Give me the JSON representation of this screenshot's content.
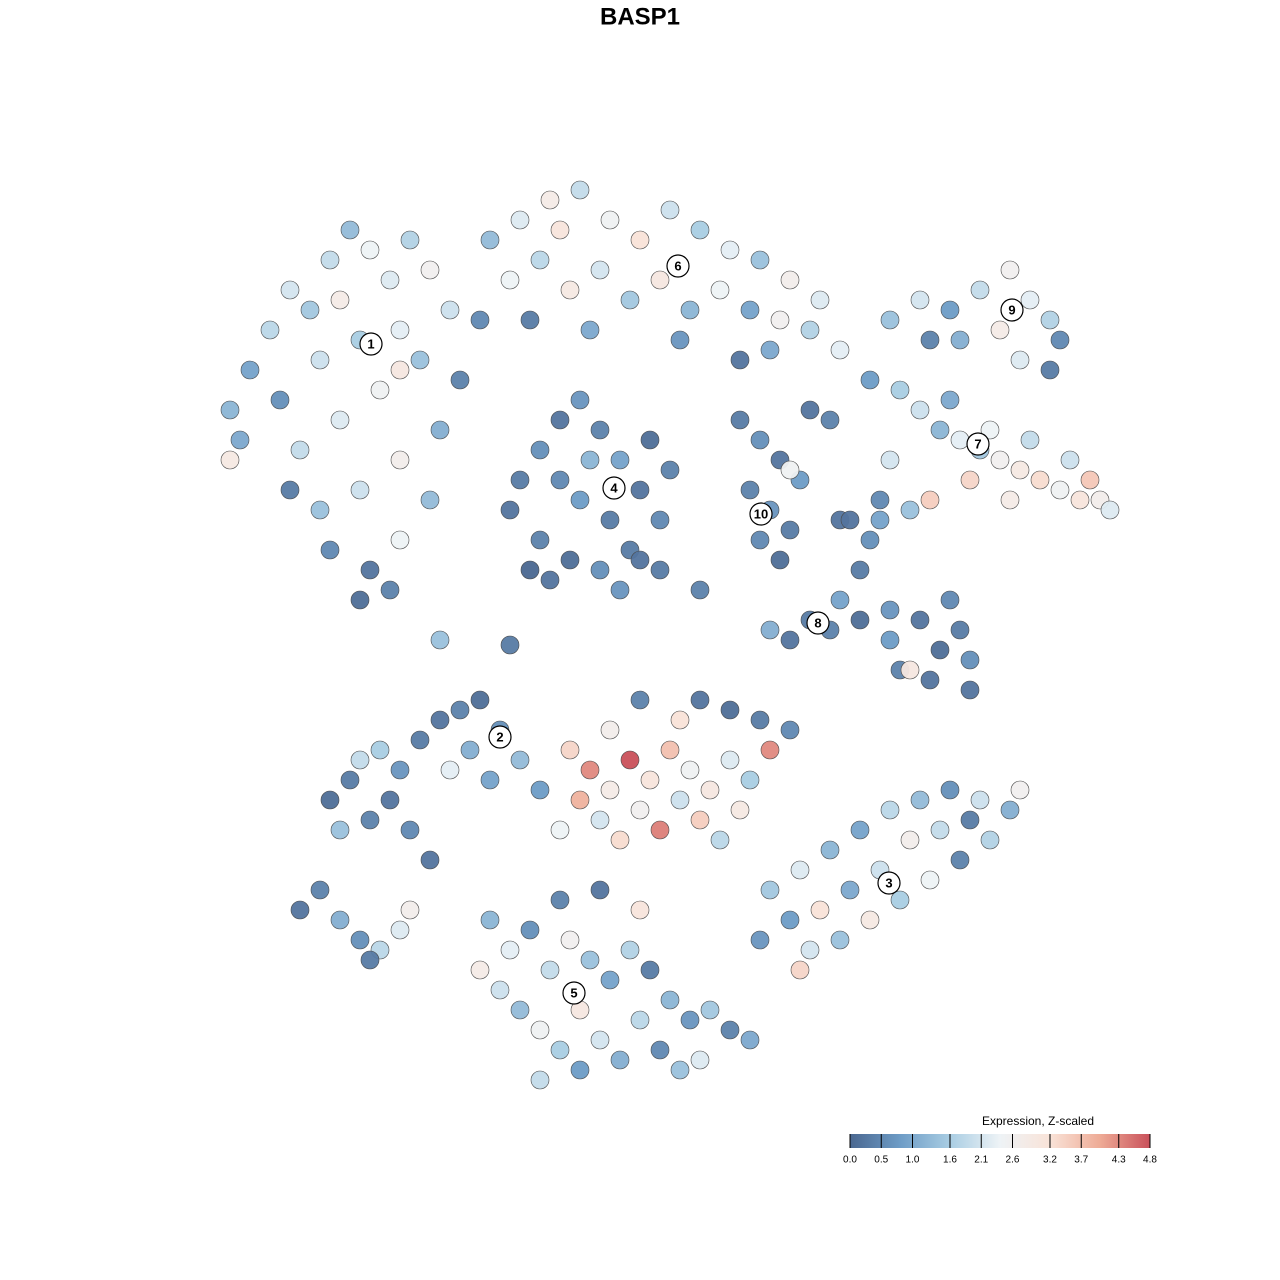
{
  "chart_data": {
    "type": "scatter",
    "title": "BASP1",
    "xlim": [
      -48,
      48
    ],
    "ylim": [
      -47,
      47
    ],
    "x": [
      -44,
      -42,
      -40,
      -38,
      -36,
      -34,
      -32,
      -30,
      -28,
      -26,
      -24,
      -22,
      -27,
      -31,
      -35,
      -39,
      -43,
      -37,
      -33,
      -29,
      -25,
      -21,
      -23,
      -27,
      -31,
      -35,
      -38,
      -34,
      -30,
      -27,
      -24,
      -31,
      -28,
      -44,
      -33,
      -27,
      -18,
      -15,
      -12,
      -9,
      -6,
      -3,
      0,
      3,
      6,
      9,
      12,
      15,
      -16,
      -13,
      -10,
      -7,
      -4,
      -1,
      2,
      5,
      8,
      11,
      14,
      -19,
      -14,
      -8,
      1,
      7,
      -11,
      22,
      25,
      28,
      31,
      34,
      36,
      38,
      39,
      33,
      29,
      26,
      35,
      38,
      20,
      23,
      25,
      27,
      29,
      31,
      33,
      35,
      37,
      39,
      41,
      43,
      44,
      36,
      32,
      28,
      40,
      30,
      26,
      22,
      24,
      21,
      34,
      42,
      -15,
      -13,
      -11,
      -9,
      -7,
      -5,
      -3,
      -1,
      -4,
      -7,
      -10,
      -13,
      -16,
      -9,
      -6,
      -11,
      -2,
      0,
      -12,
      -5,
      -8,
      -14,
      -1,
      7,
      9,
      11,
      13,
      8,
      10,
      12,
      9,
      11,
      14,
      16,
      17,
      12,
      18,
      20,
      19,
      17,
      16,
      19,
      22,
      25,
      28,
      29,
      27,
      30,
      26,
      23,
      22,
      14,
      12,
      10,
      24,
      30,
      21,
      -34,
      -32,
      -30,
      -28,
      -26,
      -27,
      -29,
      -31,
      -25,
      -23,
      -21,
      -19,
      -17,
      -15,
      -13,
      -20,
      -22,
      -24,
      -33,
      -18,
      -10,
      -8,
      -6,
      -4,
      -2,
      0,
      2,
      4,
      6,
      8,
      10,
      -9,
      -7,
      -5,
      -3,
      -1,
      1,
      3,
      5,
      7,
      -11,
      -6,
      1,
      -3,
      3,
      9,
      12,
      6,
      10,
      13,
      16,
      19,
      22,
      25,
      28,
      31,
      34,
      35,
      32,
      29,
      26,
      23,
      20,
      17,
      14,
      12,
      15,
      21,
      18,
      24,
      27,
      30,
      13,
      9,
      -18,
      -16,
      -14,
      -12,
      -10,
      -8,
      -6,
      -4,
      -2,
      0,
      2,
      4,
      6,
      8,
      -17,
      -15,
      -13,
      -11,
      -9,
      -7,
      -5,
      -3,
      -1,
      1,
      3,
      -9,
      -11,
      -7,
      -3,
      -19,
      -13,
      -37,
      -35,
      -33,
      -31,
      -29,
      -27,
      -30,
      -26,
      -23,
      -16,
      -3,
      3,
      17,
      10
    ],
    "y": [
      23,
      27,
      31,
      35,
      33,
      38,
      41,
      39,
      36,
      40,
      37,
      33,
      31,
      30,
      28,
      24,
      20,
      19,
      22,
      25,
      28,
      26,
      21,
      18,
      15,
      13,
      15,
      9,
      7,
      10,
      14,
      4,
      5,
      18,
      34,
      27,
      40,
      42,
      44,
      45,
      42,
      40,
      43,
      41,
      39,
      38,
      36,
      34,
      36,
      38,
      35,
      37,
      34,
      36,
      33,
      35,
      33,
      32,
      31,
      32,
      32,
      31,
      30,
      28,
      41,
      32,
      34,
      33,
      35,
      37,
      34,
      32,
      30,
      31,
      30,
      30,
      28,
      27,
      26,
      25,
      23,
      21,
      20,
      19,
      18,
      17,
      16,
      15,
      14,
      14,
      13,
      20,
      21,
      24,
      18,
      16,
      14,
      18,
      13,
      12,
      14,
      16,
      16,
      19,
      22,
      24,
      21,
      18,
      15,
      12,
      9,
      7,
      8,
      10,
      13,
      14,
      12,
      16,
      20,
      17,
      6,
      5,
      18,
      7,
      7,
      22,
      20,
      18,
      16,
      15,
      13,
      11,
      10,
      8,
      23,
      22,
      12,
      17,
      12,
      10,
      7,
      4,
      1,
      2,
      3,
      2,
      4,
      1,
      -1,
      -2,
      -4,
      -3,
      0,
      2,
      0,
      1,
      -3,
      -5,
      14,
      -16,
      -14,
      -18,
      -16,
      -19,
      -13,
      -11,
      -12,
      -10,
      -8,
      -7,
      -6,
      -9,
      -12,
      -15,
      -11,
      -13,
      -22,
      -19,
      -14,
      -11,
      -13,
      -15,
      -12,
      -14,
      -11,
      -13,
      -15,
      -12,
      -14,
      -11,
      -16,
      -18,
      -20,
      -17,
      -19,
      -16,
      -18,
      -20,
      -17,
      -19,
      -9,
      -8,
      -6,
      -6,
      -8,
      -9,
      -7,
      -25,
      -23,
      -21,
      -19,
      -17,
      -16,
      -15,
      -16,
      -17,
      -15,
      -20,
      -22,
      -24,
      -26,
      -28,
      -30,
      -31,
      -28,
      -27,
      -23,
      -25,
      -20,
      -19,
      -18,
      -33,
      -30,
      -28,
      -31,
      -29,
      -33,
      -30,
      -32,
      -34,
      -31,
      -33,
      -36,
      -38,
      -37,
      -39,
      -40,
      -35,
      -37,
      -39,
      -41,
      -43,
      -40,
      -42,
      -38,
      -41,
      -43,
      -42,
      -37,
      -26,
      -25,
      -27,
      -33,
      -44,
      -27,
      -25,
      -28,
      -30,
      -31,
      -29,
      -32,
      -27,
      0,
      -0.5,
      8,
      5,
      29,
      29
    ],
    "values": [
      1.2,
      0.9,
      1.8,
      2.1,
      1.5,
      1.9,
      1.3,
      2.4,
      2.2,
      1.7,
      2.6,
      2.0,
      2.3,
      1.6,
      2.0,
      0.6,
      1.0,
      1.9,
      2.2,
      2.5,
      1.4,
      0.4,
      1.1,
      2.7,
      2.0,
      1.4,
      0.3,
      0.5,
      0.2,
      2.4,
      1.3,
      0.1,
      0.4,
      2.9,
      2.8,
      3.0,
      1.3,
      2.2,
      2.8,
      1.9,
      2.5,
      3.2,
      2.0,
      1.6,
      2.3,
      1.4,
      2.7,
      2.2,
      2.4,
      1.8,
      2.9,
      2.1,
      1.5,
      3.0,
      1.2,
      2.4,
      0.9,
      2.6,
      1.7,
      0.5,
      0.3,
      1.0,
      0.7,
      0.2,
      3.1,
      1.4,
      2.1,
      0.8,
      1.9,
      2.6,
      2.3,
      1.7,
      0.5,
      2.8,
      1.1,
      0.4,
      2.2,
      0.3,
      0.8,
      1.6,
      2.0,
      1.2,
      2.3,
      1.5,
      2.6,
      2.9,
      3.3,
      2.5,
      3.1,
      2.7,
      2.2,
      1.9,
      2.4,
      1.0,
      2.0,
      3.4,
      3.5,
      2.1,
      1.4,
      0.9,
      2.8,
      3.6,
      0.3,
      0.6,
      0.2,
      0.7,
      0.4,
      0.9,
      0.2,
      0.5,
      0.3,
      0.6,
      0.1,
      0.4,
      0.2,
      0.8,
      0.3,
      0.5,
      0.1,
      0.4,
      0.2,
      0.7,
      1.2,
      0.0,
      0.3,
      0.3,
      0.6,
      0.2,
      0.8,
      0.4,
      0.7,
      0.3,
      0.5,
      0.1,
      0.2,
      0.4,
      0.2,
      2.5,
      0.2,
      0.6,
      0.3,
      0.9,
      0.4,
      0.1,
      0.7,
      0.2,
      0.5,
      0.3,
      0.1,
      0.6,
      0.2,
      0.4,
      0.8,
      0.3,
      0.2,
      1.1,
      3.0,
      0.2,
      0.5,
      0.1,
      0.3,
      0.4,
      0.2,
      0.5,
      0.7,
      1.6,
      1.9,
      0.3,
      0.2,
      0.4,
      0.1,
      0.6,
      1.3,
      0.8,
      1.1,
      2.3,
      0.2,
      1.4,
      0.9,
      3.4,
      4.3,
      2.8,
      4.8,
      3.1,
      3.7,
      2.5,
      3.0,
      2.2,
      1.6,
      4.3,
      3.9,
      2.1,
      3.3,
      2.6,
      4.4,
      2.0,
      3.5,
      1.8,
      2.9,
      2.4,
      2.7,
      3.2,
      0.4,
      0.2,
      0.3,
      0.5,
      0.1,
      1.5,
      2.2,
      1.2,
      0.9,
      1.8,
      1.3,
      0.6,
      2.0,
      1.1,
      2.6,
      1.7,
      0.4,
      2.4,
      1.6,
      2.9,
      1.4,
      2.1,
      0.8,
      3.2,
      2.0,
      1.0,
      2.7,
      1.9,
      0.3,
      3.4,
      0.7,
      1.2,
      2.3,
      0.6,
      1.9,
      2.6,
      1.4,
      0.9,
      1.7,
      0.3,
      1.2,
      0.7,
      1.5,
      0.4,
      1.0,
      2.0,
      1.3,
      2.5,
      1.6,
      0.8,
      2.1,
      1.1,
      1.8,
      0.5,
      1.4,
      2.2,
      3.0,
      0.4,
      0.2,
      3.1,
      2.8,
      1.9,
      0.2,
      0.4,
      1.1,
      0.6,
      1.8,
      2.2,
      0.3,
      2.7,
      1.4,
      0.3,
      0.2,
      0.4,
      2.3,
      1.0
    ],
    "annotations": [
      {
        "label": "1",
        "x": -29.9,
        "y": 29.6
      },
      {
        "label": "2",
        "x": -17,
        "y": -9.7
      },
      {
        "label": "3",
        "x": 21.9,
        "y": -24.3
      },
      {
        "label": "4",
        "x": -5.6,
        "y": 15.2
      },
      {
        "label": "5",
        "x": -9.6,
        "y": -35.3
      },
      {
        "label": "6",
        "x": 0.8,
        "y": 37.4
      },
      {
        "label": "7",
        "x": 30.8,
        "y": 19.6
      },
      {
        "label": "8",
        "x": 14.8,
        "y": 1.7
      },
      {
        "label": "9",
        "x": 34.2,
        "y": 33
      },
      {
        "label": "10",
        "x": 9.1,
        "y": 12.6
      }
    ],
    "colorbar": {
      "title": "Expression, Z-scaled",
      "clim": [
        0,
        4.8
      ],
      "colors": [
        "#4a6790",
        "#6d9cc6",
        "#a9cde3",
        "#eef3f6",
        "#f9e3d8",
        "#eeab96",
        "#c9505a"
      ],
      "ticks": [
        {
          "value": 0,
          "label": "0.0"
        },
        0.5,
        {
          "value": 1,
          "label": "1.0"
        },
        1.6,
        2.1,
        2.6,
        3.2,
        3.7,
        4.3,
        4.8
      ]
    }
  }
}
